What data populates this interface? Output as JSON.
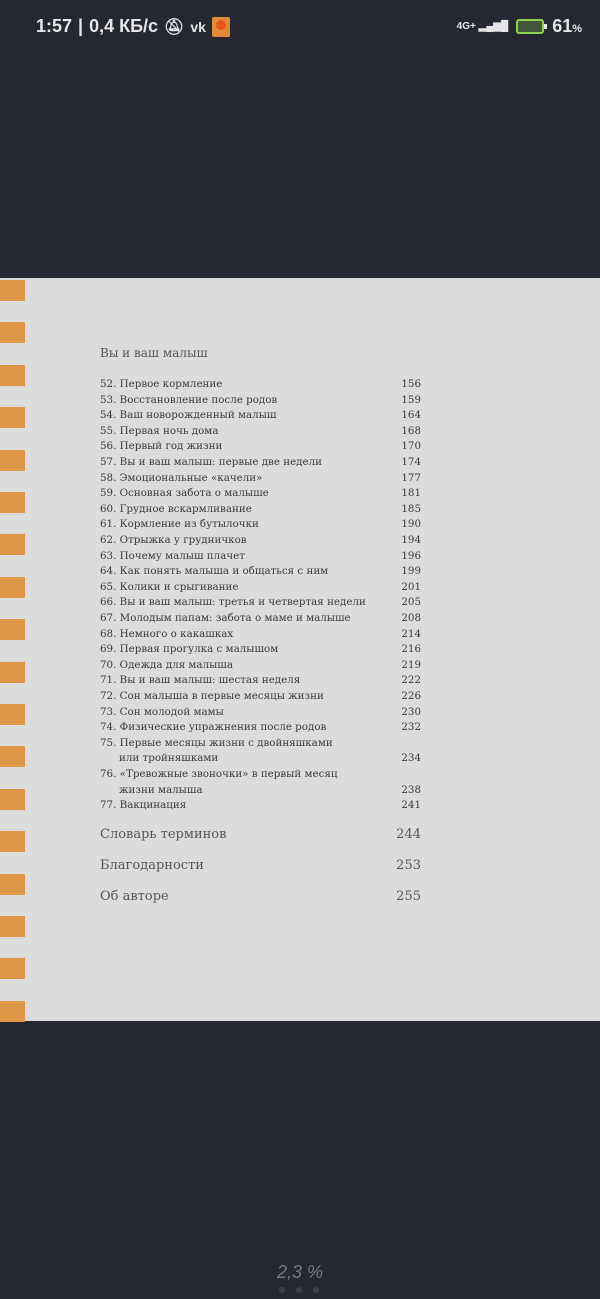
{
  "status_bar": {
    "time": "1:57",
    "speed": "0,4 КБ/с",
    "network": "4G+",
    "battery": "61",
    "battery_unit": "%",
    "icons": [
      "bell-off-icon",
      "vk-icon",
      "app-icon",
      "signal-icon",
      "battery-charging-icon"
    ]
  },
  "colors": {
    "background": "#252830",
    "page": "#dcdcdc",
    "tabs": "#de9647"
  },
  "toc": {
    "section_title": "Вы и ваш малыш",
    "entries": [
      {
        "title": "52. Первое кормление",
        "page": "156"
      },
      {
        "title": "53. Восстановление после родов",
        "page": "159"
      },
      {
        "title": "54. Ваш новорожденный малыш",
        "page": "164"
      },
      {
        "title": "55. Первая ночь дома",
        "page": "168"
      },
      {
        "title": "56. Первый год жизни",
        "page": "170"
      },
      {
        "title": "57. Вы и ваш малыш: первые две недели",
        "page": "174"
      },
      {
        "title": "58. Эмоциональные «качели»",
        "page": "177"
      },
      {
        "title": "59. Основная забота  о малыше",
        "page": "181"
      },
      {
        "title": "60. Грудное вскармливание",
        "page": "185"
      },
      {
        "title": "61. Кормление из бутылочки",
        "page": "190"
      },
      {
        "title": "62. Отрыжка у грудничков",
        "page": "194"
      },
      {
        "title": "63. Почему малыш плачет",
        "page": "196"
      },
      {
        "title": "64. Как понять малыша и общаться с ним",
        "page": "199"
      },
      {
        "title": "65. Колики и срыгивание",
        "page": "201"
      },
      {
        "title": "66. Вы и ваш малыш: третья и четвертая недели",
        "page": "205"
      },
      {
        "title": "67. Молодым папам: забота о маме и малыше",
        "page": "208"
      },
      {
        "title": "68. Немного о какашках",
        "page": "214"
      },
      {
        "title": "69. Первая прогулка с малышом",
        "page": "216"
      },
      {
        "title": "70. Одежда для малыша",
        "page": "219"
      },
      {
        "title": "71. Вы и ваш малыш: шестая неделя",
        "page": "222"
      },
      {
        "title": "72. Сон малыша в первые месяцы жизни",
        "page": "226"
      },
      {
        "title": "73. Сон молодой мамы",
        "page": "230"
      },
      {
        "title": "74. Физические упражнения после родов",
        "page": "232"
      },
      {
        "title": "75. Первые месяцы жизни с двойняшками",
        "title2": "или тройняшками",
        "page": "234"
      },
      {
        "title": "76. «Тревожные звоночки» в первый месяц",
        "title2": "жизни малыша",
        "page": "238"
      },
      {
        "title": "77. Вакцинация",
        "page": "241"
      }
    ],
    "back_matter": [
      {
        "title": "Словарь терминов",
        "page": "244"
      },
      {
        "title": "Благодарности",
        "page": "253"
      },
      {
        "title": "Об авторе",
        "page": "255"
      }
    ]
  },
  "reader": {
    "progress": "2,3 %",
    "progress_percent": 2.3
  }
}
